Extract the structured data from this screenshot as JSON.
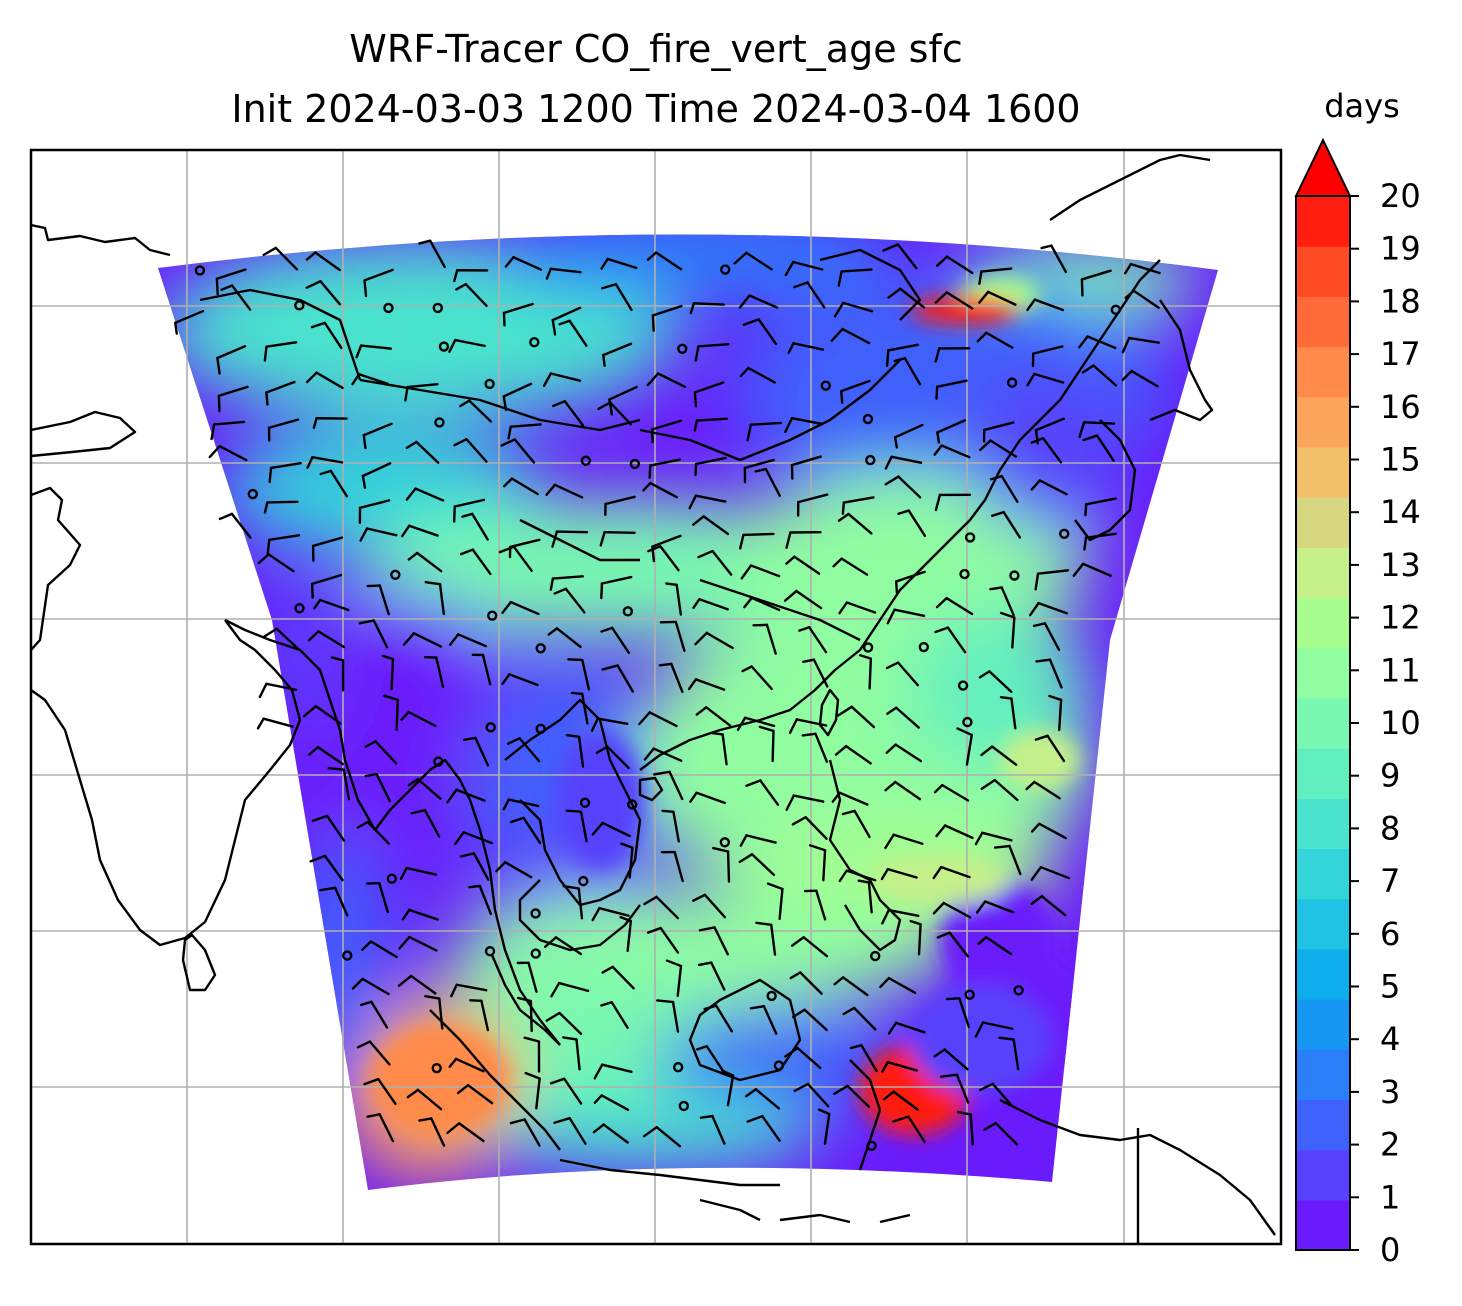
{
  "figure": {
    "title_line1": "WRF-Tracer CO_fire_vert_age sfc",
    "title_line2": "Init 2024-03-03 1200 Time 2024-03-04 1600"
  },
  "colorbar": {
    "label": "days",
    "min": 0,
    "max": 20,
    "step": 1,
    "extend": "max",
    "colormap": "rainbow",
    "ticks": [
      "0",
      "1",
      "2",
      "3",
      "4",
      "5",
      "6",
      "7",
      "8",
      "9",
      "10",
      "11",
      "12",
      "13",
      "14",
      "15",
      "16",
      "17",
      "18",
      "19",
      "20"
    ],
    "colors": [
      "#6a1bfb",
      "#5642fc",
      "#3f61fb",
      "#2a7ef8",
      "#1597f3",
      "#0eaeec",
      "#20c3e3",
      "#33d5d9",
      "#4ae3cd",
      "#62efbf",
      "#78f8b1",
      "#90fda0",
      "#a7fe8f",
      "#c6f08a",
      "#d6d780",
      "#f2c16a",
      "#fca55c",
      "#ff8a4a",
      "#ff6b38",
      "#ff4c26",
      "#ff1e0f"
    ],
    "over_color": "#ff0000"
  },
  "map": {
    "domain_background": "#6a1bfb",
    "gridlines": true,
    "coastline_color": "#000000",
    "barb_color": "#000000",
    "grid_color": "#b0b0b0"
  }
}
